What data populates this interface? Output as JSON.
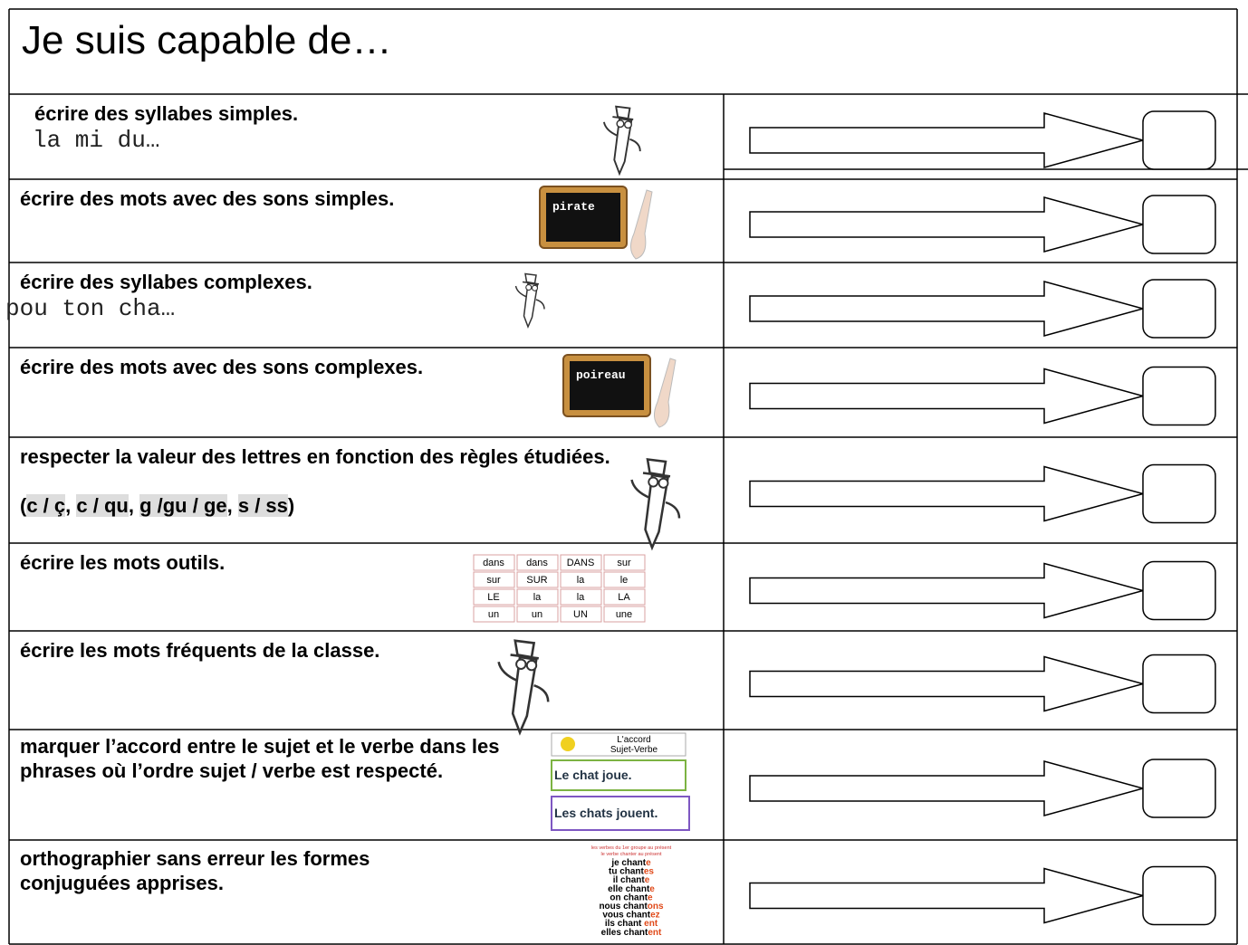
{
  "header": {
    "title": "Je suis capable de…"
  },
  "rows": [
    {
      "text": "écrire des syllabes simples.",
      "example": "la mi du…"
    },
    {
      "text": "écrire des mots avec des sons simples.",
      "slate_word": "pirate"
    },
    {
      "text": "écrire des syllabes complexes.",
      "example": "pou ton cha…"
    },
    {
      "text": "écrire des mots avec des sons complexes.",
      "slate_word": "poireau"
    },
    {
      "text": "respecter la valeur des lettres en fonction des règles étudiées.",
      "rule_parts": [
        "(",
        "c / ç",
        ", ",
        "c / qu",
        ", ",
        "g /gu / ge",
        ", ",
        "s / ss",
        ")"
      ]
    },
    {
      "text": "écrire les mots outils.",
      "word_grid": [
        [
          "dans",
          "dans",
          "DANS",
          "sur"
        ],
        [
          "sur",
          "SUR",
          "la",
          "le"
        ],
        [
          "LE",
          "la",
          "la",
          "LA"
        ],
        [
          "un",
          "un",
          "UN",
          "une"
        ]
      ]
    },
    {
      "text": "écrire les mots fréquents de la classe."
    },
    {
      "text": "marquer l’accord entre le sujet et le verbe dans les phrases où l’ordre sujet / verbe est respecté.",
      "card_title": [
        "L'accord",
        "Sujet-Verbe"
      ],
      "sentences": [
        "Le chat joue.",
        "Les chats jouent."
      ]
    },
    {
      "text": "orthographier sans erreur les formes conjuguées apprises.",
      "conj_title": [
        "les verbes du 1er groupe au présent",
        "le verbe chanter au présent"
      ],
      "conjugation": [
        [
          "je chant",
          "e"
        ],
        [
          "tu chant",
          "es"
        ],
        [
          "il chant",
          "e"
        ],
        [
          "elle chant",
          "e"
        ],
        [
          "on chant",
          "e"
        ],
        [
          "nous chant",
          "ons"
        ],
        [
          "vous chant",
          "ez"
        ],
        [
          "ils chant",
          " ent"
        ],
        [
          "elles chant",
          "ent"
        ]
      ]
    }
  ]
}
